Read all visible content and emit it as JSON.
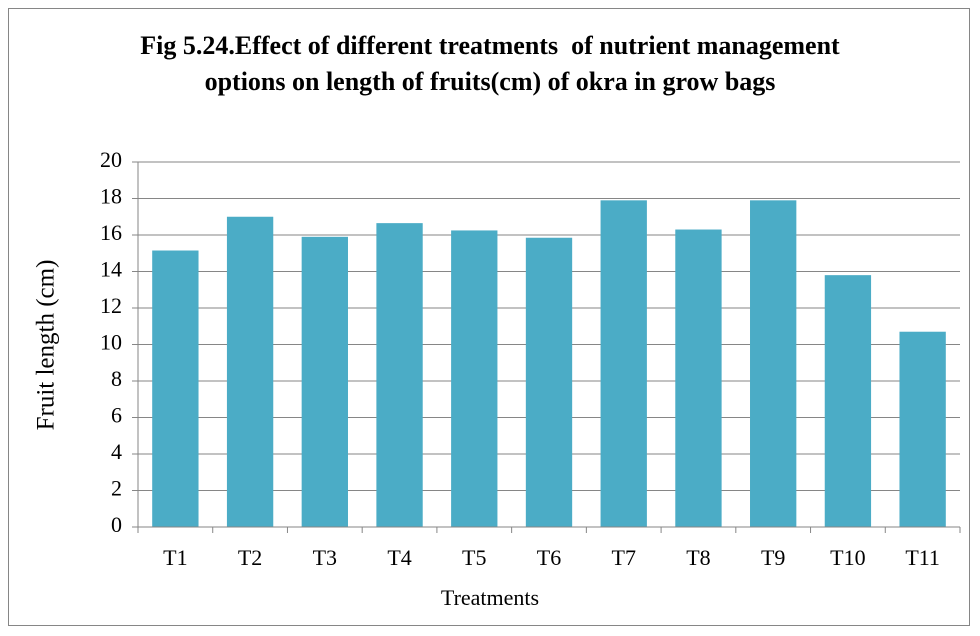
{
  "chart_data": {
    "type": "bar",
    "title": "Fig 5.24.Effect of different treatments  of nutrient management options on length of fruits(cm) of okra in grow bags",
    "x_label": "Treatments",
    "y_label": "Fruit length (cm)",
    "categories": [
      "T1",
      "T2",
      "T3",
      "T4",
      "T5",
      "T6",
      "T7",
      "T8",
      "T9",
      "T10",
      "T11"
    ],
    "values": [
      15.15,
      17.0,
      15.9,
      16.65,
      16.25,
      15.85,
      17.9,
      16.3,
      17.9,
      13.8,
      10.7
    ],
    "color": "#4bacc6",
    "ylim": [
      0,
      20
    ],
    "yticks": [
      0,
      2,
      4,
      6,
      8,
      10,
      12,
      14,
      16,
      18,
      20
    ],
    "grid": true
  }
}
